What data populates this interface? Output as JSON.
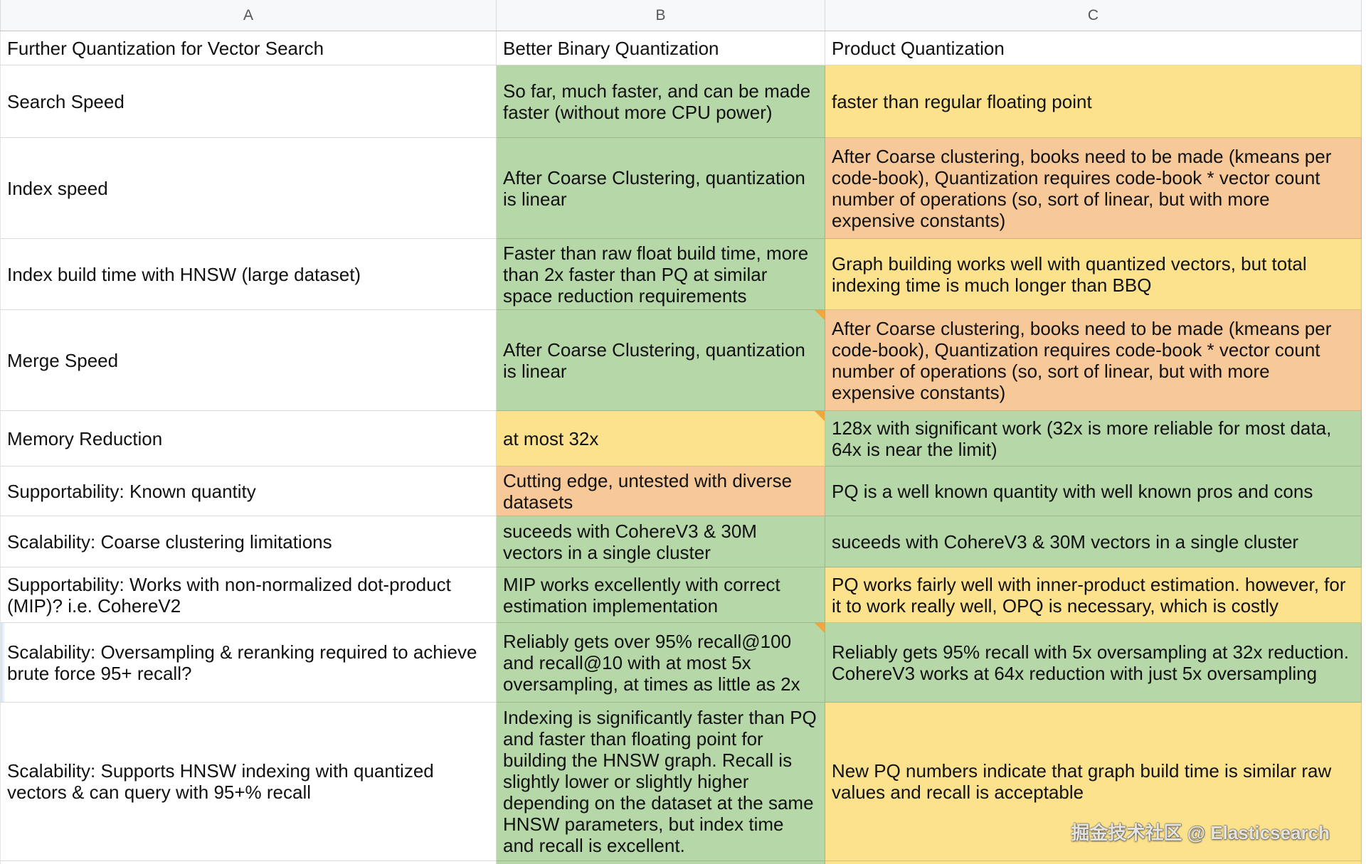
{
  "sheet": {
    "column_headers": [
      "A",
      "B",
      "C"
    ],
    "palette": {
      "white": "#ffffff",
      "green": "#b6d7a8",
      "yellow": "#fce28d",
      "orange": "#f8c998",
      "note_marker": "#f2a63c",
      "header_bg": "#f7f8f9",
      "header_text": "#565656",
      "grid_line": "#d9d9d9"
    },
    "watermark": "掘金技术社区 @ Elasticsearch",
    "rows": [
      {
        "a": {
          "text": "Further Quantization for Vector Search",
          "color": "white"
        },
        "b": {
          "text": "Better Binary Quantization",
          "color": "white"
        },
        "c": {
          "text": "Product Quantization",
          "color": "white"
        }
      },
      {
        "a": {
          "text": "Search Speed",
          "color": "white"
        },
        "b": {
          "text": "So far, much faster, and can be made faster (without more CPU power)",
          "color": "green"
        },
        "c": {
          "text": "faster than regular floating point",
          "color": "yellow"
        }
      },
      {
        "a": {
          "text": "Index speed",
          "color": "white"
        },
        "b": {
          "text": "After Coarse Clustering, quantization is linear",
          "color": "green"
        },
        "c": {
          "text": "After Coarse clustering, books need to be made (kmeans per code-book), Quantization requires code-book * vector count number of operations (so, sort of linear, but with more expensive constants)",
          "color": "orange"
        }
      },
      {
        "a": {
          "text": "Index build time with HNSW (large dataset)",
          "color": "white"
        },
        "b": {
          "text": "Faster than raw float build time, more than 2x faster than PQ at similar space reduction requirements",
          "color": "green"
        },
        "c": {
          "text": "Graph building works well with quantized vectors, but total indexing time is much longer than BBQ",
          "color": "yellow"
        }
      },
      {
        "a": {
          "text": "Merge Speed",
          "color": "white"
        },
        "b": {
          "text": "After Coarse Clustering, quantization is linear",
          "color": "green",
          "has_note": true
        },
        "c": {
          "text": "After Coarse clustering, books need to be made (kmeans per code-book), Quantization requires code-book * vector count number of operations (so, sort of linear, but with more expensive constants)",
          "color": "orange"
        }
      },
      {
        "a": {
          "text": "Memory Reduction",
          "color": "white"
        },
        "b": {
          "text": "at most 32x",
          "color": "yellow",
          "has_note": true
        },
        "c": {
          "text": "128x with significant work (32x is more reliable for most data, 64x is near the limit)",
          "color": "green"
        }
      },
      {
        "a": {
          "text": "Supportability: Known quantity",
          "color": "white"
        },
        "b": {
          "text": "Cutting edge, untested with diverse datasets",
          "color": "orange"
        },
        "c": {
          "text": "PQ is a well known quantity with well known pros and cons",
          "color": "green"
        }
      },
      {
        "a": {
          "text": "Scalability: Coarse clustering limitations",
          "color": "white"
        },
        "b": {
          "text": "suceeds with CohereV3 & 30M vectors in a single cluster",
          "color": "green"
        },
        "c": {
          "text": "suceeds with CohereV3 & 30M vectors in a single cluster",
          "color": "green"
        }
      },
      {
        "a": {
          "text": "Supportability: Works with non-normalized dot-product (MIP)? i.e. CohereV2",
          "color": "white"
        },
        "b": {
          "text": "MIP works excellently with correct estimation implementation",
          "color": "green"
        },
        "c": {
          "text": "PQ works fairly well with inner-product estimation. however, for it to work really well, OPQ is necessary, which is costly",
          "color": "yellow"
        }
      },
      {
        "a": {
          "text": "Scalability: Oversampling & reranking required to achieve brute force 95+ recall?",
          "color": "white"
        },
        "b": {
          "text": "Reliably gets over 95% recall@100 and recall@10 with at most 5x oversampling, at times as little as 2x",
          "color": "green",
          "has_note": true
        },
        "c": {
          "text": "Reliably gets 95% recall with 5x oversampling at 32x reduction. CohereV3 works at 64x reduction with just 5x oversampling",
          "color": "green"
        }
      },
      {
        "a": {
          "text": "Scalability: Supports HNSW indexing with quantized vectors & can query with 95+% recall",
          "color": "white"
        },
        "b": {
          "text": "Indexing is significantly faster than PQ and faster than floating point for building the HNSW graph. Recall is slightly lower or slightly higher depending on the dataset at the same HNSW parameters, but index time and recall is excellent.",
          "color": "green"
        },
        "c": {
          "text": "New PQ numbers indicate that graph build time is similar raw values and recall is acceptable",
          "color": "yellow"
        }
      }
    ]
  }
}
